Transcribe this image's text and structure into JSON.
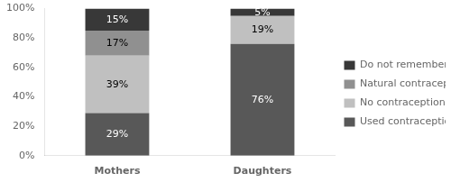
{
  "chart_data": {
    "type": "bar",
    "stacked": true,
    "categories": [
      "Mothers",
      "Daughters"
    ],
    "series": [
      {
        "name": "Used contraception",
        "color": "#585858",
        "values": [
          29,
          76
        ],
        "value_labels": [
          "29%",
          "76%"
        ]
      },
      {
        "name": "No contraception",
        "color": "#c0c0c0",
        "values": [
          39,
          19
        ],
        "value_labels": [
          "39%",
          "19%"
        ]
      },
      {
        "name": "Natural contraception",
        "color": "#909090",
        "values": [
          17,
          0
        ],
        "value_labels": [
          "17%",
          null
        ]
      },
      {
        "name": "Do not remember",
        "color": "#383838",
        "values": [
          15,
          5
        ],
        "value_labels": [
          "15%",
          "5%"
        ]
      }
    ],
    "ylim": [
      0,
      100
    ],
    "yticks": [
      {
        "value": 0,
        "label": "0%"
      },
      {
        "value": 20,
        "label": "20%"
      },
      {
        "value": 40,
        "label": "40%"
      },
      {
        "value": 60,
        "label": "60%"
      },
      {
        "value": 80,
        "label": "80%"
      },
      {
        "value": 100,
        "label": "100%"
      }
    ],
    "grid": false,
    "legend": "right",
    "data_labels": true
  }
}
